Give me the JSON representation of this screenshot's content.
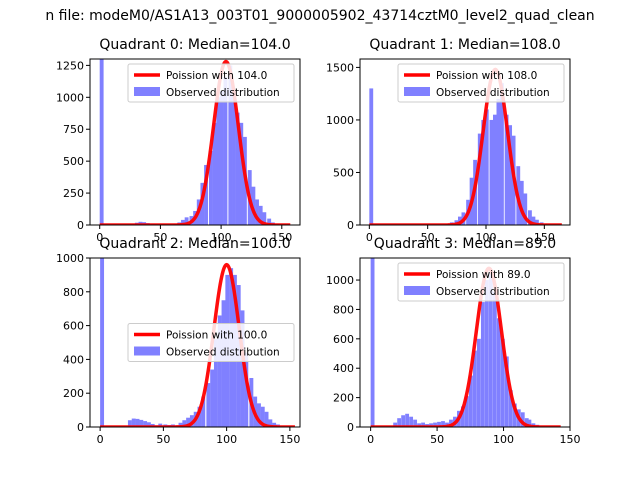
{
  "figure_title": "n file: modeM0/AS1A13_003T01_9000005902_43714cztM0_level2_quad_clean",
  "colors": {
    "hist": "#8080ff",
    "line": "#ff0000"
  },
  "chart_data": [
    {
      "type": "bar",
      "title": "Quadrant 0: Median=104.0",
      "xlim": [
        -8,
        165
      ],
      "ylim": [
        0,
        1300
      ],
      "xticks": [
        0,
        50,
        100,
        150
      ],
      "yticks": [
        0,
        250,
        500,
        750,
        1000,
        1250
      ],
      "series": [
        {
          "name": "Poission with 104.0",
          "kind": "line",
          "mean": 104.0,
          "peak": 1280,
          "range": [
            0,
            157
          ]
        },
        {
          "name": "Observed distribution",
          "kind": "histogram",
          "bin_width": 3.2,
          "bins": [
            [
              0,
              1300
            ],
            [
              25,
              8
            ],
            [
              29,
              18
            ],
            [
              32,
              25
            ],
            [
              35,
              22
            ],
            [
              38,
              15
            ],
            [
              42,
              10
            ],
            [
              45,
              7
            ],
            [
              48,
              6
            ],
            [
              51,
              5
            ],
            [
              54,
              5
            ],
            [
              58,
              6
            ],
            [
              61,
              10
            ],
            [
              64,
              20
            ],
            [
              67,
              40
            ],
            [
              70,
              60
            ],
            [
              74,
              70
            ],
            [
              77,
              110
            ],
            [
              80,
              200
            ],
            [
              83,
              330
            ],
            [
              86,
              470
            ],
            [
              90,
              580
            ],
            [
              93,
              800
            ],
            [
              96,
              1000
            ],
            [
              99,
              1050
            ],
            [
              102,
              1160
            ],
            [
              106,
              1250
            ],
            [
              109,
              1020
            ],
            [
              112,
              880
            ],
            [
              115,
              800
            ],
            [
              118,
              690
            ],
            [
              122,
              430
            ],
            [
              125,
              300
            ],
            [
              128,
              200
            ],
            [
              131,
              150
            ],
            [
              134,
              100
            ],
            [
              138,
              50
            ],
            [
              141,
              20
            ],
            [
              144,
              10
            ]
          ]
        }
      ],
      "legend": "top-right"
    },
    {
      "type": "bar",
      "title": "Quadrant 1: Median=108.0",
      "xlim": [
        -8,
        172
      ],
      "ylim": [
        0,
        1580
      ],
      "xticks": [
        0,
        50,
        100,
        150
      ],
      "yticks": [
        0,
        500,
        1000,
        1500
      ],
      "series": [
        {
          "name": "Poission with 108.0",
          "kind": "line",
          "mean": 108.0,
          "peak": 1480,
          "range": [
            0,
            165
          ]
        },
        {
          "name": "Observed distribution",
          "kind": "histogram",
          "bin_width": 3.3,
          "bins": [
            [
              0,
              1300
            ],
            [
              66,
              10
            ],
            [
              69,
              25
            ],
            [
              73,
              45
            ],
            [
              76,
              80
            ],
            [
              79,
              120
            ],
            [
              83,
              240
            ],
            [
              86,
              450
            ],
            [
              89,
              620
            ],
            [
              93,
              870
            ],
            [
              96,
              1000
            ],
            [
              99,
              1100
            ],
            [
              103,
              1000
            ],
            [
              106,
              1050
            ],
            [
              109,
              1200
            ],
            [
              112,
              1350
            ],
            [
              116,
              1050
            ],
            [
              119,
              950
            ],
            [
              122,
              850
            ],
            [
              126,
              560
            ],
            [
              129,
              420
            ],
            [
              132,
              300
            ],
            [
              136,
              140
            ],
            [
              139,
              80
            ],
            [
              142,
              50
            ],
            [
              146,
              25
            ],
            [
              149,
              12
            ]
          ]
        }
      ],
      "legend": "top-right"
    },
    {
      "type": "bar",
      "title": "Quadrant 2: Median=100.0",
      "xlim": [
        -8,
        158
      ],
      "ylim": [
        0,
        1000
      ],
      "xticks": [
        0,
        50,
        100,
        150
      ],
      "yticks": [
        0,
        200,
        400,
        600,
        800,
        1000
      ],
      "series": [
        {
          "name": "Poission with 100.0",
          "kind": "line",
          "mean": 100.0,
          "peak": 960,
          "range": [
            0,
            154
          ]
        },
        {
          "name": "Observed distribution",
          "kind": "histogram",
          "bin_width": 3.1,
          "bins": [
            [
              0,
              1000
            ],
            [
              22,
              40
            ],
            [
              25,
              50
            ],
            [
              28,
              48
            ],
            [
              31,
              42
            ],
            [
              34,
              35
            ],
            [
              37,
              28
            ],
            [
              40,
              18
            ],
            [
              43,
              10
            ],
            [
              46,
              20
            ],
            [
              50,
              15
            ],
            [
              53,
              12
            ],
            [
              56,
              15
            ],
            [
              59,
              10
            ],
            [
              62,
              25
            ],
            [
              65,
              40
            ],
            [
              68,
              55
            ],
            [
              71,
              70
            ],
            [
              74,
              90
            ],
            [
              77,
              120
            ],
            [
              80,
              180
            ],
            [
              84,
              260
            ],
            [
              87,
              340
            ],
            [
              90,
              520
            ],
            [
              93,
              660
            ],
            [
              96,
              750
            ],
            [
              99,
              900
            ],
            [
              102,
              940
            ],
            [
              105,
              900
            ],
            [
              108,
              840
            ],
            [
              111,
              690
            ],
            [
              114,
              440
            ],
            [
              118,
              290
            ],
            [
              121,
              180
            ],
            [
              124,
              140
            ],
            [
              127,
              120
            ],
            [
              130,
              90
            ],
            [
              133,
              45
            ],
            [
              136,
              25
            ],
            [
              139,
              15
            ]
          ]
        }
      ],
      "legend": "center-right"
    },
    {
      "type": "bar",
      "title": "Quadrant 3: Median=89.0",
      "xlim": [
        -8,
        150
      ],
      "ylim": [
        0,
        1150
      ],
      "xticks": [
        0,
        50,
        100,
        150
      ],
      "yticks": [
        0,
        200,
        400,
        600,
        800,
        1000
      ],
      "series": [
        {
          "name": "Poission with 89.0",
          "kind": "line",
          "mean": 89.0,
          "peak": 1080,
          "range": [
            0,
            143
          ]
        },
        {
          "name": "Observed distribution",
          "kind": "histogram",
          "bin_width": 2.9,
          "bins": [
            [
              0,
              1150
            ],
            [
              17,
              30
            ],
            [
              20,
              60
            ],
            [
              23,
              80
            ],
            [
              26,
              90
            ],
            [
              29,
              70
            ],
            [
              32,
              50
            ],
            [
              35,
              25
            ],
            [
              38,
              30
            ],
            [
              41,
              20
            ],
            [
              44,
              25
            ],
            [
              47,
              30
            ],
            [
              50,
              35
            ],
            [
              53,
              40
            ],
            [
              56,
              30
            ],
            [
              59,
              50
            ],
            [
              62,
              70
            ],
            [
              65,
              110
            ],
            [
              68,
              140
            ],
            [
              71,
              210
            ],
            [
              74,
              350
            ],
            [
              77,
              520
            ],
            [
              80,
              600
            ],
            [
              83,
              850
            ],
            [
              86,
              1000
            ],
            [
              89,
              1050
            ],
            [
              92,
              920
            ],
            [
              95,
              740
            ],
            [
              98,
              600
            ],
            [
              101,
              480
            ],
            [
              104,
              250
            ],
            [
              107,
              160
            ],
            [
              110,
              120
            ],
            [
              113,
              100
            ],
            [
              116,
              60
            ],
            [
              118,
              50
            ],
            [
              121,
              25
            ],
            [
              124,
              15
            ]
          ]
        }
      ],
      "legend": "top-right"
    }
  ]
}
